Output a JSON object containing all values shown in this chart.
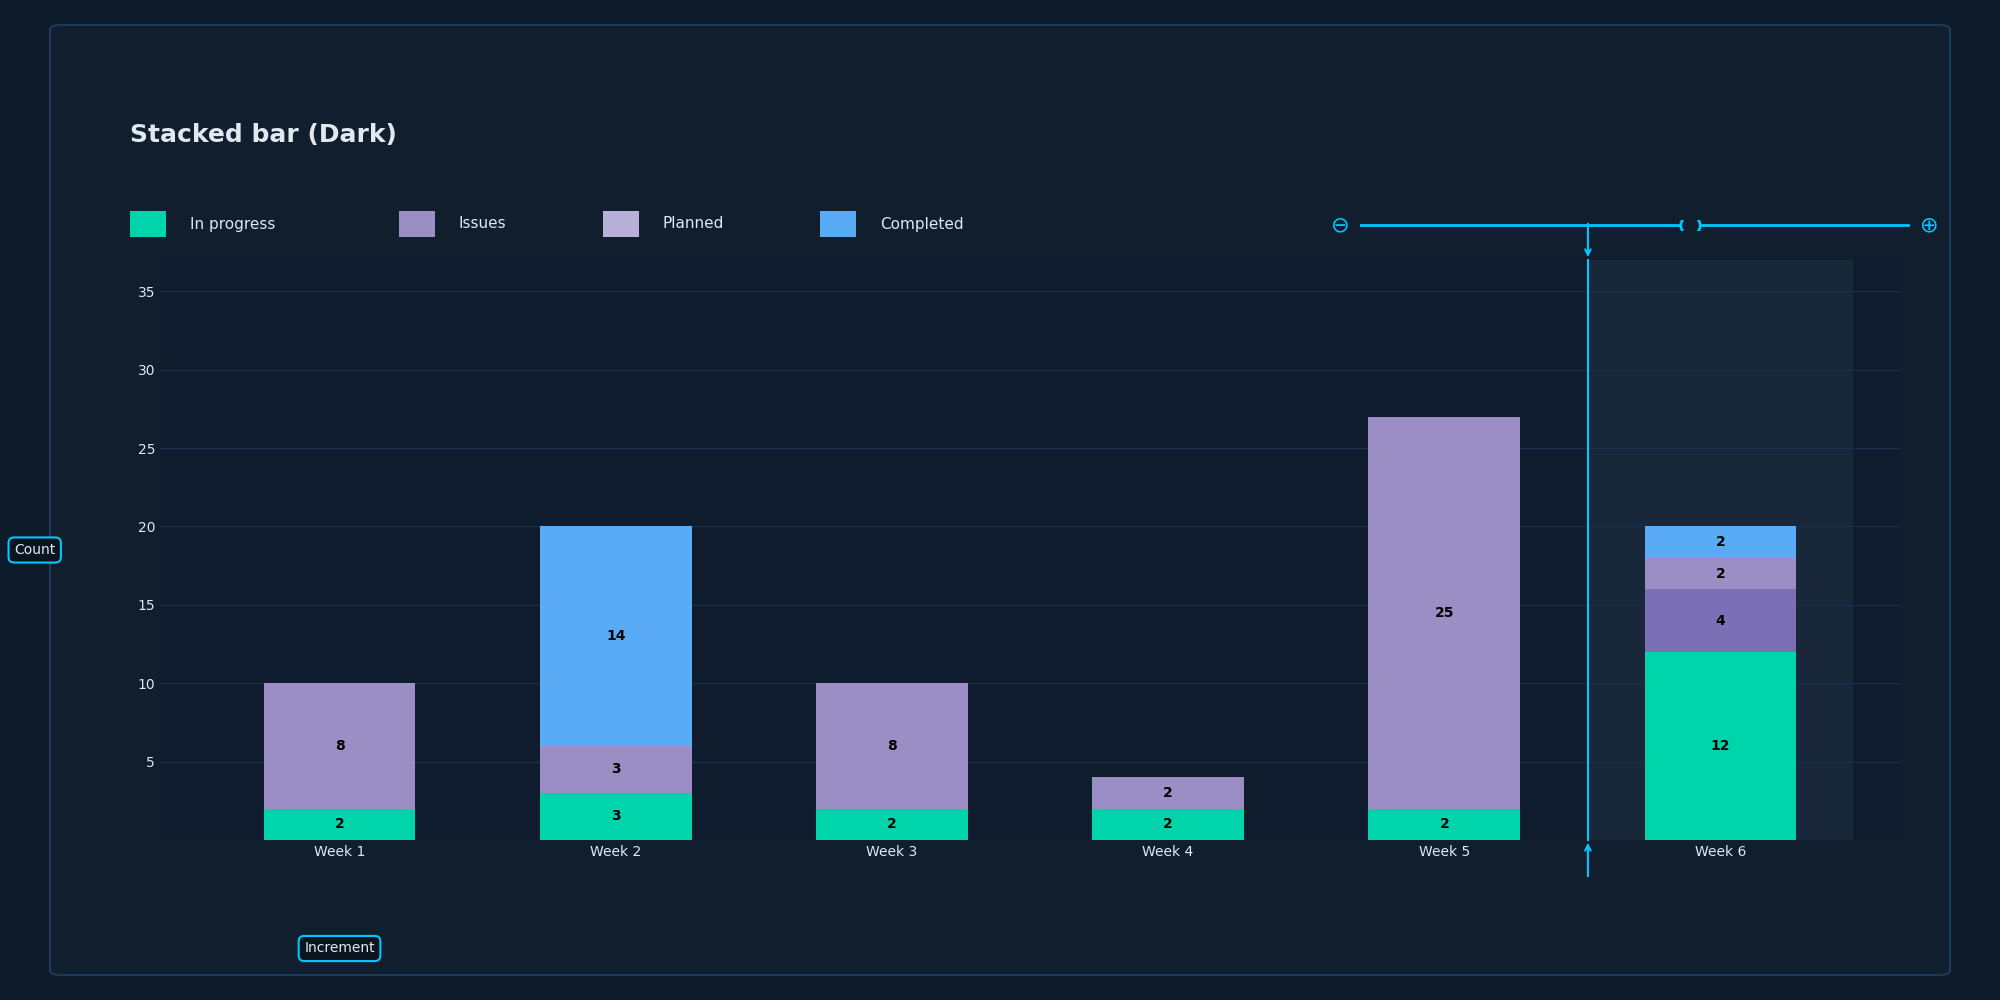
{
  "title": "Stacked bar (Dark)",
  "categories": [
    "Week 1",
    "Week 2",
    "Week 3",
    "Week 4",
    "Week 5",
    "Week 6"
  ],
  "xlabel": "Increment",
  "ylabel": "Count",
  "ylim": [
    0,
    37
  ],
  "yticks": [
    5,
    10,
    15,
    20,
    25,
    30,
    35
  ],
  "series": {
    "In progress": [
      2,
      3,
      2,
      2,
      2,
      12
    ],
    "Issues": [
      0,
      0,
      0,
      0,
      0,
      4
    ],
    "Planned": [
      8,
      3,
      8,
      2,
      25,
      2
    ],
    "Completed": [
      0,
      14,
      0,
      0,
      0,
      2
    ]
  },
  "bar_colors": {
    "In progress": "#00d4aa",
    "Issues": "#7b6fb5",
    "Planned": "#9b8ec4",
    "Completed": "#5aabf5"
  },
  "legend_colors": {
    "In progress": "#00d4aa",
    "Issues": "#9b8ec4",
    "Planned": "#b8b0d8",
    "Completed": "#5aabf5"
  },
  "series_order": [
    "In progress",
    "Issues",
    "Planned",
    "Completed"
  ],
  "bg_outer": "#0d1b2a",
  "bg_inner": "#111e2e",
  "bg_chart": "#0f1c2d",
  "bg_highlight": "#18273a",
  "text_color": "#e0e8f0",
  "grid_color": "#1a3050",
  "cyan": "#00c8ff",
  "bar_width": 0.55,
  "highlight_col_idx": 5,
  "label_fontsize": 10,
  "title_fontsize": 18,
  "tick_fontsize": 10,
  "legend_fontsize": 11
}
